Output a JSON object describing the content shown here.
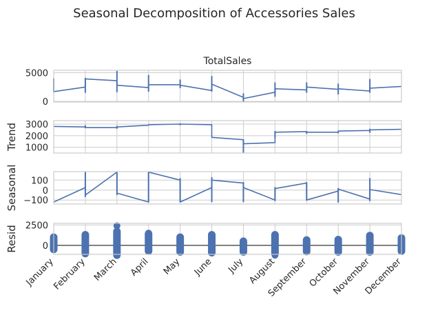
{
  "chart_data": {
    "type": "line",
    "title": "Seasonal Decomposition of Accessories Sales",
    "categories": [
      "January",
      "February",
      "March",
      "April",
      "May",
      "June",
      "July",
      "August",
      "September",
      "October",
      "November",
      "December"
    ],
    "series_color": "#4c72b0",
    "panels": [
      {
        "name": "observed",
        "title": "TotalSales",
        "ylabel": "",
        "ylim": [
          -100,
          5400
        ],
        "yticks": [
          0,
          5000
        ],
        "ytick_labels": [
          "0",
          "5000"
        ],
        "x": [
          0.0,
          0.0,
          1.0,
          1.0,
          2.0,
          2.0,
          3.0,
          3.0,
          4.0,
          4.0,
          5.0,
          5.0,
          6.0,
          6.0,
          7.0,
          7.0,
          8.0,
          8.0,
          9.0,
          9.0,
          10.0,
          10.0,
          11.0
        ],
        "values": [
          3800,
          1700,
          2500,
          3900,
          3600,
          2800,
          2400,
          2900,
          2900,
          2800,
          1900,
          3000,
          700,
          500,
          1600,
          2200,
          2000,
          2500,
          2100,
          2200,
          1800,
          2300,
          2600
        ],
        "vlines": [
          [
            0,
            1600,
            4000
          ],
          [
            1,
            1500,
            4100
          ],
          [
            2,
            1600,
            5300
          ],
          [
            3,
            1700,
            4600
          ],
          [
            4,
            2300,
            3800
          ],
          [
            5,
            1700,
            4400
          ],
          [
            6,
            0,
            1400
          ],
          [
            7,
            800,
            3300
          ],
          [
            8,
            1500,
            3300
          ],
          [
            9,
            1200,
            3100
          ],
          [
            10,
            1500,
            3900
          ]
        ]
      },
      {
        "name": "trend",
        "title": "",
        "ylabel": "Trend",
        "ylim": [
          500,
          3300
        ],
        "yticks": [
          1000,
          2000,
          3000
        ],
        "ytick_labels": [
          "1000",
          "2000",
          "3000"
        ],
        "x": [
          0.0,
          0.0,
          1.0,
          1.0,
          2.0,
          2.0,
          3.0,
          3.0,
          4.0,
          4.0,
          5.0,
          5.0,
          6.0,
          6.0,
          7.0,
          7.0,
          8.0,
          8.0,
          9.0,
          9.0,
          10.0,
          10.0,
          11.0
        ],
        "values": [
          2800,
          2800,
          2750,
          2700,
          2700,
          2750,
          2900,
          2950,
          3000,
          3000,
          2950,
          1850,
          1650,
          1300,
          1400,
          2300,
          2350,
          2300,
          2300,
          2400,
          2450,
          2500,
          2550
        ],
        "vlines": [
          [
            1,
            2650,
            2900
          ],
          [
            2,
            2600,
            2850
          ],
          [
            4,
            2900,
            3050
          ],
          [
            6,
            500,
            1650
          ],
          [
            7,
            1800,
            2400
          ],
          [
            8,
            2150,
            2400
          ],
          [
            9,
            2200,
            2350
          ],
          [
            10,
            2250,
            2600
          ]
        ]
      },
      {
        "name": "seasonal",
        "title": "",
        "ylabel": "Seasonal",
        "ylim": [
          -140,
          185
        ],
        "yticks": [
          -100,
          0,
          100
        ],
        "ytick_labels": [
          "−100",
          "0",
          "100"
        ],
        "x": [
          0.0,
          1.0,
          1.0,
          2.0,
          2.0,
          3.0,
          3.0,
          4.0,
          4.0,
          5.0,
          5.0,
          6.0,
          6.0,
          7.0,
          7.0,
          8.0,
          8.0,
          9.0,
          9.0,
          10.0,
          10.0,
          11.0
        ],
        "values": [
          -120,
          25,
          -50,
          180,
          -30,
          -120,
          180,
          100,
          -120,
          25,
          100,
          70,
          25,
          -100,
          15,
          70,
          -100,
          -10,
          10,
          -90,
          5,
          -45
        ],
        "vlines": [
          [
            1,
            -70,
            185
          ],
          [
            2,
            -50,
            185
          ],
          [
            3,
            -120,
            185
          ],
          [
            4,
            -120,
            120
          ],
          [
            5,
            -120,
            130
          ],
          [
            6,
            -120,
            80
          ],
          [
            7,
            -110,
            30
          ],
          [
            8,
            -105,
            80
          ],
          [
            9,
            -125,
            20
          ],
          [
            10,
            -110,
            120
          ]
        ]
      },
      {
        "name": "resid",
        "title": "",
        "ylabel": "Resid",
        "ylim": [
          -1100,
          2700
        ],
        "yticks": [
          0,
          2500
        ],
        "ytick_labels": [
          "0",
          "2500"
        ],
        "points": [
          [
            0,
            -500,
            1000
          ],
          [
            1,
            -1000,
            1300
          ],
          [
            2,
            -1200,
            1700
          ],
          [
            3,
            -700,
            1400
          ],
          [
            4,
            -800,
            1000
          ],
          [
            5,
            -900,
            1300
          ],
          [
            6,
            -800,
            500
          ],
          [
            7,
            -1000,
            1300
          ],
          [
            8,
            -750,
            650
          ],
          [
            9,
            -800,
            700
          ],
          [
            10,
            -800,
            1200
          ],
          [
            11,
            -700,
            900
          ]
        ],
        "extra_points": [
          [
            2,
            2400
          ],
          [
            7,
            -1200
          ],
          [
            3,
            1500
          ]
        ]
      }
    ],
    "grid": true,
    "legend": "none"
  }
}
